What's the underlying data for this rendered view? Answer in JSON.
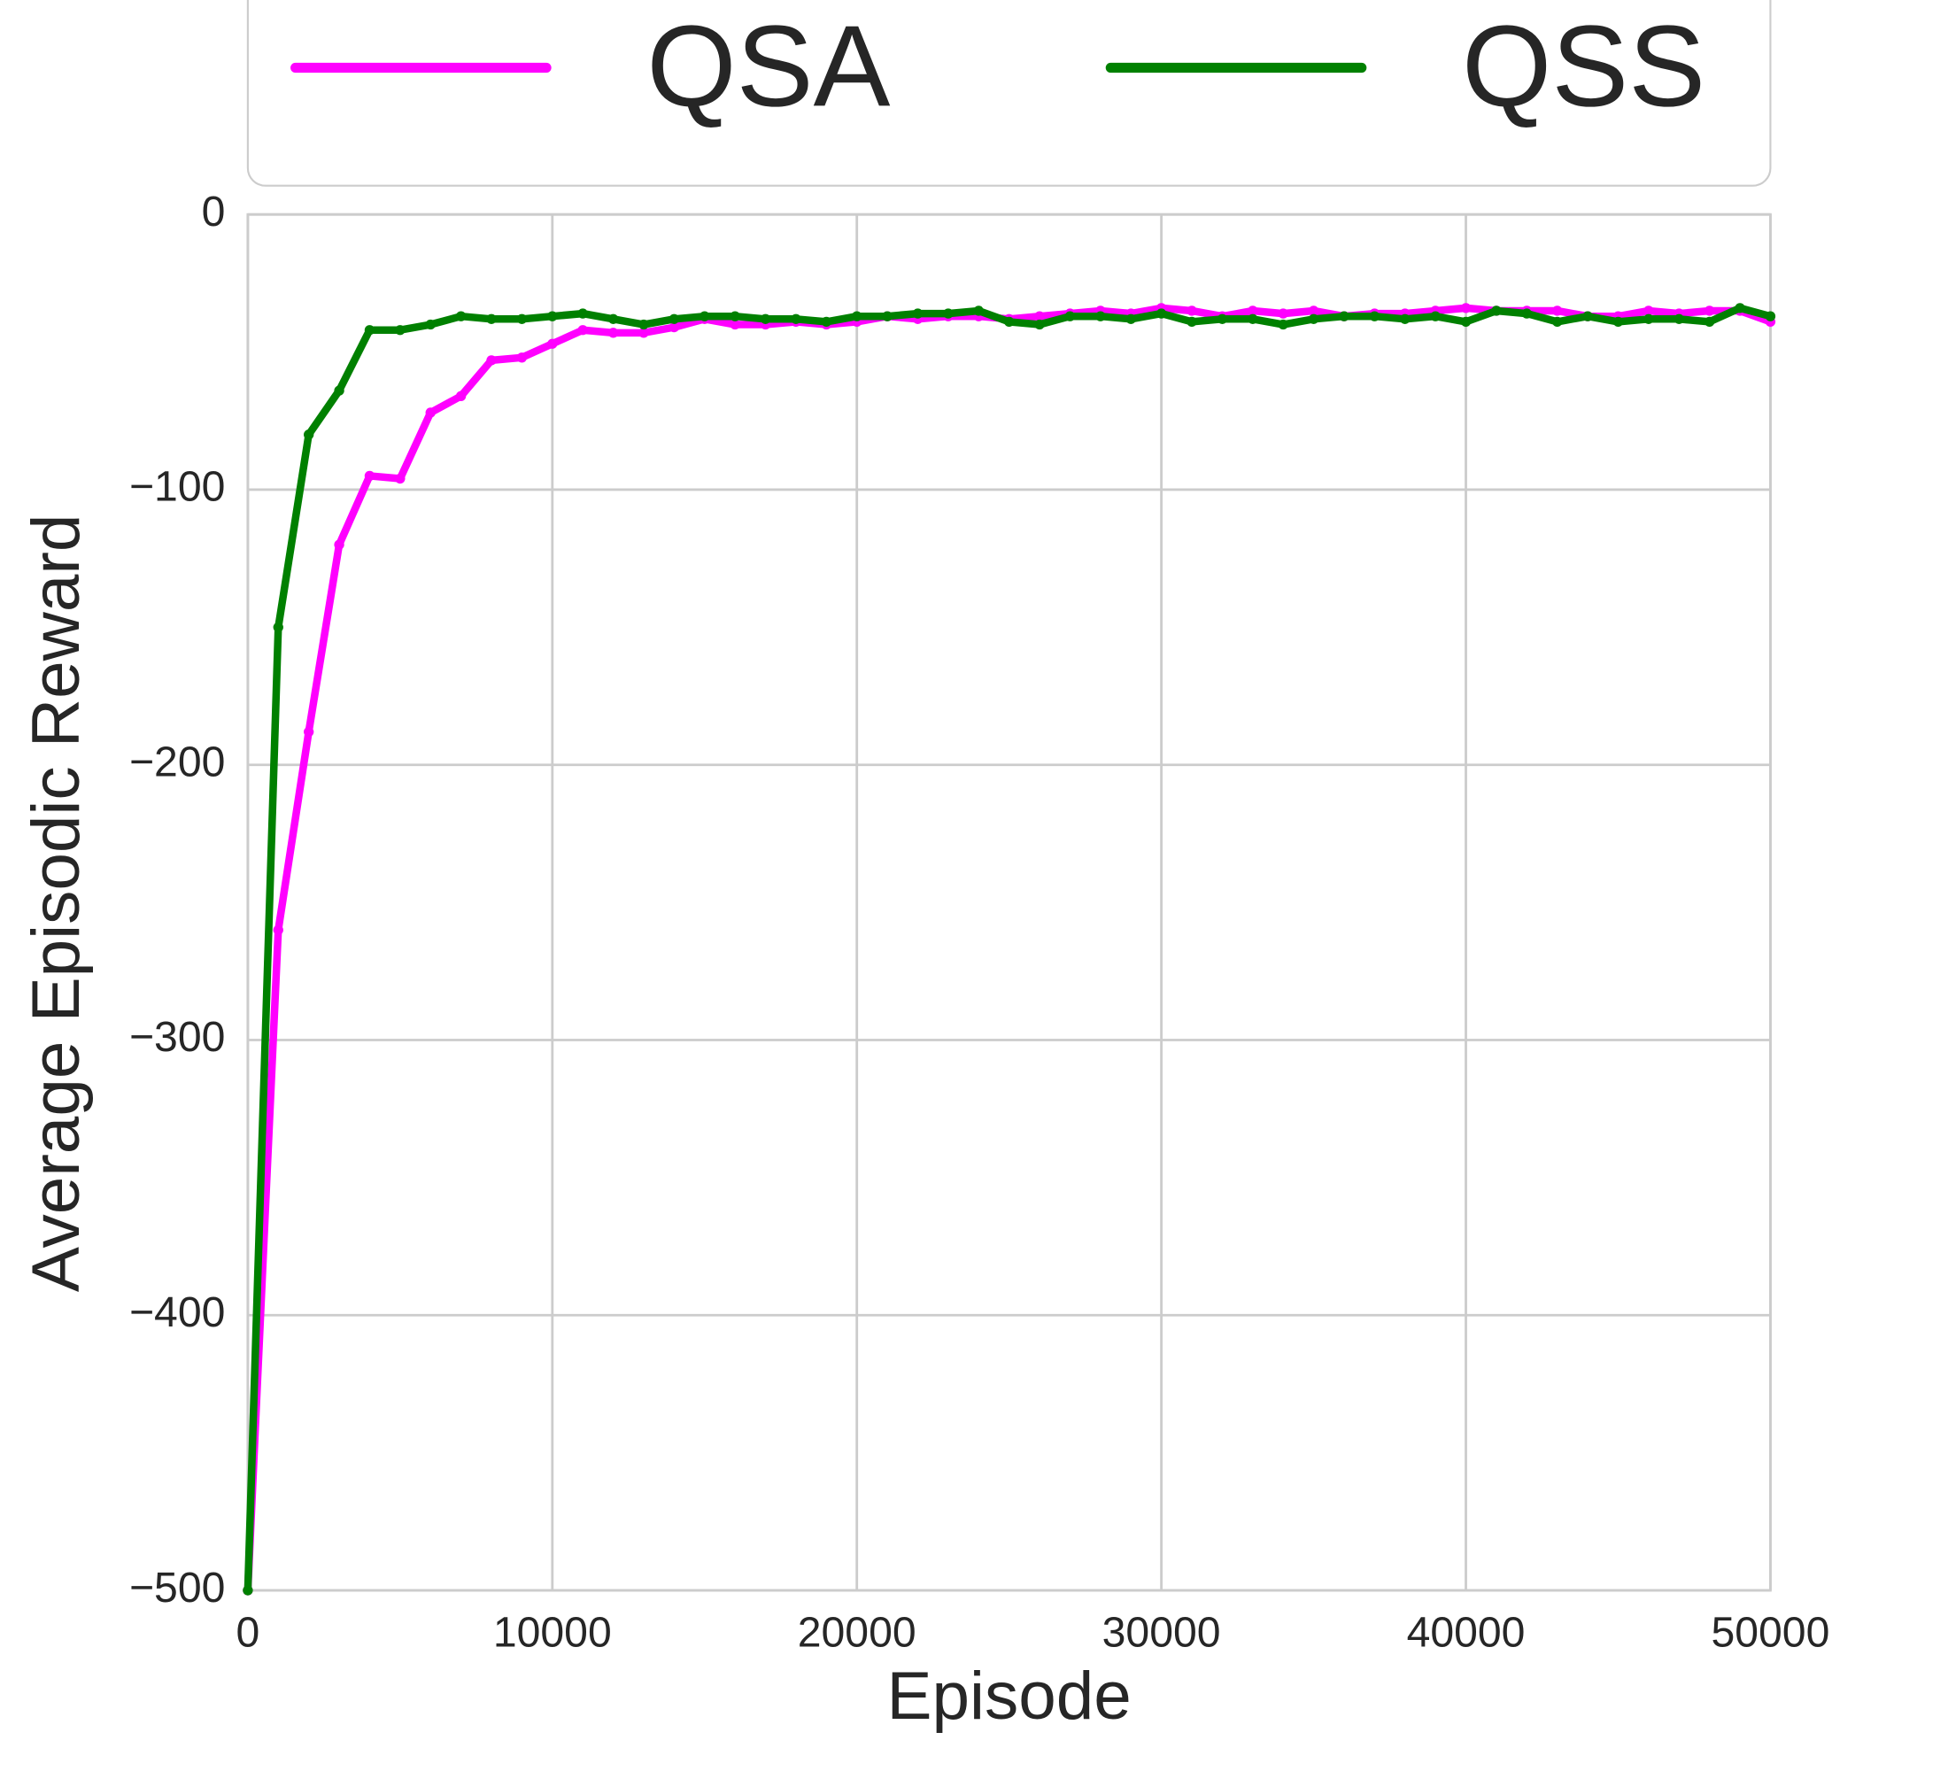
{
  "chart_data": {
    "type": "line",
    "xlabel": "Episode",
    "ylabel": "Average Episodic Reward",
    "x": [
      0,
      1000,
      2000,
      3000,
      4000,
      5000,
      6000,
      7000,
      8000,
      9000,
      10000,
      11000,
      12000,
      13000,
      14000,
      15000,
      16000,
      17000,
      18000,
      19000,
      20000,
      21000,
      22000,
      23000,
      24000,
      25000,
      26000,
      27000,
      28000,
      29000,
      30000,
      31000,
      32000,
      33000,
      34000,
      35000,
      36000,
      37000,
      38000,
      39000,
      40000,
      41000,
      42000,
      43000,
      44000,
      45000,
      46000,
      47000,
      48000,
      49000,
      50000
    ],
    "series": [
      {
        "name": "QSA",
        "color": "#ff00ff",
        "values": [
          -500,
          -260,
          -188,
          -120,
          -95,
          -96,
          -72,
          -66,
          -53,
          -52,
          -47,
          -42,
          -43,
          -43,
          -41,
          -38,
          -40,
          -40,
          -39,
          -40,
          -39,
          -37,
          -38,
          -37,
          -37,
          -38,
          -37,
          -36,
          -35,
          -36,
          -34,
          -35,
          -37,
          -35,
          -36,
          -35,
          -37,
          -36,
          -36,
          -35,
          -34,
          -35,
          -35,
          -35,
          -37,
          -37,
          -35,
          -36,
          -35,
          -35,
          -39
        ]
      },
      {
        "name": "QSS",
        "color": "#008000",
        "values": [
          -500,
          -150,
          -80,
          -64,
          -42,
          -42,
          -40,
          -37,
          -38,
          -38,
          -37,
          -36,
          -38,
          -40,
          -38,
          -37,
          -37,
          -38,
          -38,
          -39,
          -37,
          -37,
          -36,
          -36,
          -35,
          -39,
          -40,
          -37,
          -37,
          -38,
          -36,
          -39,
          -38,
          -38,
          -40,
          -38,
          -37,
          -37,
          -38,
          -37,
          -39,
          -35,
          -36,
          -39,
          -37,
          -39,
          -38,
          -38,
          -39,
          -34,
          -37
        ]
      }
    ],
    "xlim": [
      0,
      50000
    ],
    "xticks": [
      0,
      10000,
      20000,
      30000,
      40000,
      50000
    ],
    "ylim": [
      -500,
      0
    ],
    "yticks": [
      {
        "value": -500,
        "label": "−500"
      },
      {
        "value": -400,
        "label": "−400"
      },
      {
        "value": -300,
        "label": "−300"
      },
      {
        "value": -200,
        "label": "−200"
      },
      {
        "value": -100,
        "label": "−100"
      },
      0
    ],
    "grid": true,
    "legend": "top"
  }
}
